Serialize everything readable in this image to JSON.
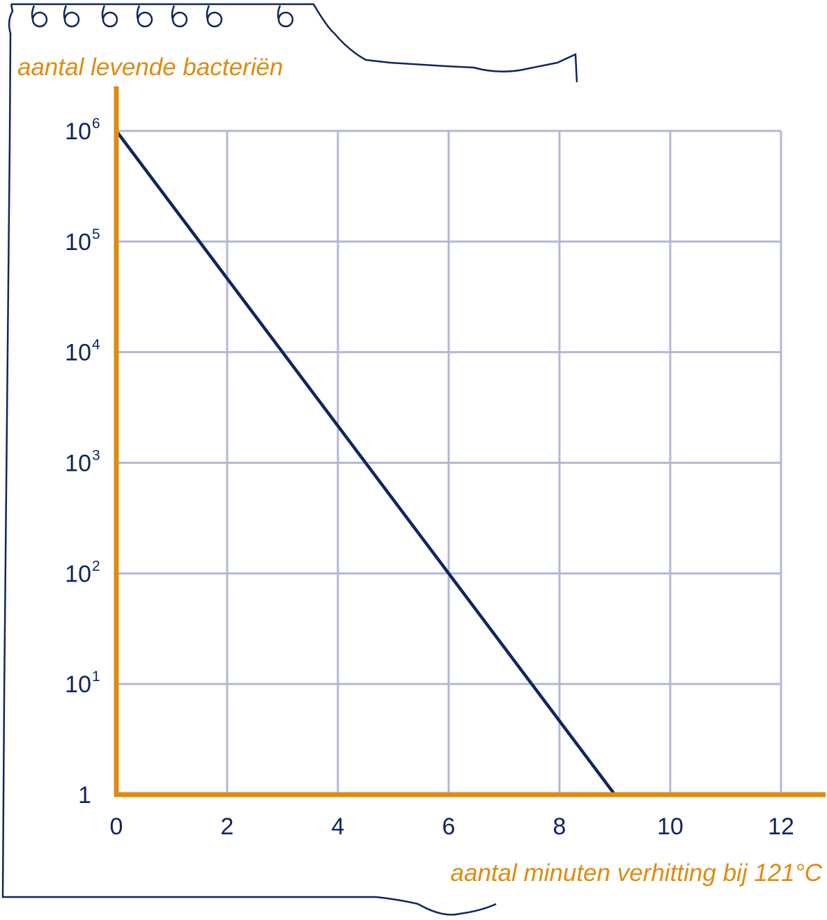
{
  "colors": {
    "axis": "#e08a0e",
    "grid": "#b3b7d6",
    "line": "#0d2660",
    "text": "#0d2660",
    "notebook_outline": "#0d2660",
    "background": "#ffffff"
  },
  "notebook": {
    "ring_icon": "spiral-ring-icon",
    "ring_count": 7
  },
  "chart_data": {
    "type": "line",
    "xlabel": "aantal minuten verhitting bij 121°C",
    "ylabel": "aantal levende bacteriën",
    "xscale": "linear",
    "yscale": "log",
    "xlim": [
      0,
      12
    ],
    "ylim": [
      1,
      1000000
    ],
    "grid": true,
    "x_ticks": [
      {
        "value": 0,
        "label": "0"
      },
      {
        "value": 2,
        "label": "2"
      },
      {
        "value": 4,
        "label": "4"
      },
      {
        "value": 6,
        "label": "6"
      },
      {
        "value": 8,
        "label": "8"
      },
      {
        "value": 10,
        "label": "10"
      },
      {
        "value": 12,
        "label": "12"
      }
    ],
    "y_ticks": [
      {
        "value": 1,
        "base": "1",
        "exp": ""
      },
      {
        "value": 10,
        "base": "10",
        "exp": "1"
      },
      {
        "value": 100,
        "base": "10",
        "exp": "2"
      },
      {
        "value": 1000,
        "base": "10",
        "exp": "3"
      },
      {
        "value": 10000,
        "base": "10",
        "exp": "4"
      },
      {
        "value": 100000,
        "base": "10",
        "exp": "5"
      },
      {
        "value": 1000000,
        "base": "10",
        "exp": "6"
      }
    ],
    "series": [
      {
        "x": [
          0,
          9
        ],
        "y": [
          1000000,
          1
        ]
      }
    ]
  }
}
